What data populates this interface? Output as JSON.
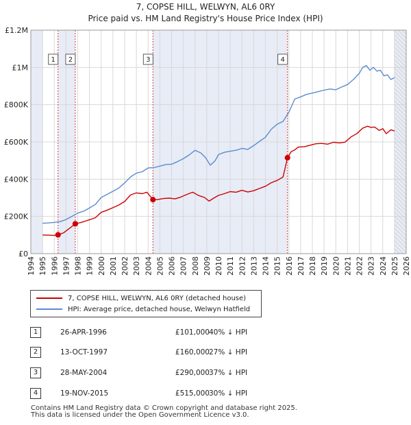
{
  "title_line1": "7, COPSE HILL, WELWYN, AL6 0RY",
  "title_line2": "Price paid vs. HM Land Registry's House Price Index (HPI)",
  "chart_data": {
    "type": "line",
    "title": "7, COPSE HILL, WELWYN, AL6 0RY",
    "subtitle": "Price paid vs. HM Land Registry's House Price Index (HPI)",
    "xlabel": "",
    "ylabel": "",
    "xlim": [
      1994,
      2026
    ],
    "ylim": [
      0,
      1200000
    ],
    "x_ticks": [
      "1994",
      "1995",
      "1996",
      "1997",
      "1998",
      "1999",
      "2000",
      "2001",
      "2002",
      "2003",
      "2004",
      "2005",
      "2006",
      "2007",
      "2008",
      "2009",
      "2010",
      "2011",
      "2012",
      "2013",
      "2014",
      "2015",
      "2016",
      "2017",
      "2018",
      "2019",
      "2020",
      "2021",
      "2022",
      "2023",
      "2024",
      "2025",
      "2026"
    ],
    "y_ticks": [
      {
        "value": 0,
        "label": "£0"
      },
      {
        "value": 200000,
        "label": "£200K"
      },
      {
        "value": 400000,
        "label": "£400K"
      },
      {
        "value": 600000,
        "label": "£600K"
      },
      {
        "value": 800000,
        "label": "£800K"
      },
      {
        "value": 1000000,
        "label": "£1M"
      },
      {
        "value": 1200000,
        "label": "£1.2M"
      }
    ],
    "grid": true,
    "series": [
      {
        "name": "7, COPSE HILL, WELWYN, AL6 0RY (detached house)",
        "color": "#cc0000",
        "x": [
          1995.0,
          1995.5,
          1996.0,
          1996.32,
          1996.8,
          1997.3,
          1997.79,
          1998.3,
          1999.0,
          1999.5,
          2000.0,
          2000.5,
          2001.0,
          2001.5,
          2002.0,
          2002.5,
          2003.0,
          2003.5,
          2003.9,
          2004.41,
          2004.8,
          2005.3,
          2005.8,
          2006.3,
          2006.8,
          2007.3,
          2007.8,
          2008.3,
          2008.8,
          2009.2,
          2009.6,
          2010.0,
          2010.5,
          2011.0,
          2011.5,
          2012.0,
          2012.5,
          2013.0,
          2013.5,
          2014.0,
          2014.5,
          2015.0,
          2015.5,
          2015.88,
          2016.2,
          2016.5,
          2016.8,
          2017.3,
          2017.8,
          2018.3,
          2018.8,
          2019.3,
          2019.8,
          2020.3,
          2020.8,
          2021.3,
          2021.8,
          2022.3,
          2022.7,
          2023.0,
          2023.3,
          2023.7,
          2024.0,
          2024.3,
          2024.7,
          2025.0
        ],
        "values": [
          100000,
          99000,
          98000,
          101000,
          112000,
          136000,
          160000,
          168000,
          182000,
          193000,
          222000,
          233000,
          247000,
          261000,
          280000,
          315000,
          326000,
          322000,
          330000,
          290000,
          290000,
          296000,
          298000,
          294000,
          304000,
          318000,
          330000,
          312000,
          302000,
          282000,
          298000,
          313000,
          322000,
          333000,
          330000,
          340000,
          331000,
          338000,
          350000,
          362000,
          381000,
          393000,
          412000,
          515000,
          548000,
          557000,
          572000,
          574000,
          582000,
          590000,
          592000,
          588000,
          598000,
          594000,
          599000,
          627000,
          645000,
          674000,
          684000,
          678000,
          680000,
          662000,
          671000,
          644000,
          665000,
          658000
        ]
      },
      {
        "name": "HPI: Average price, detached house, Welwyn Hatfield",
        "color": "#5b8bd0",
        "x": [
          1995.0,
          1995.5,
          1996.0,
          1996.5,
          1997.0,
          1997.5,
          1998.0,
          1998.5,
          1999.0,
          1999.5,
          2000.0,
          2000.5,
          2001.0,
          2001.5,
          2002.0,
          2002.5,
          2003.0,
          2003.5,
          2004.0,
          2004.5,
          2005.0,
          2005.5,
          2006.0,
          2006.5,
          2007.0,
          2007.5,
          2008.0,
          2008.5,
          2008.9,
          2009.3,
          2009.7,
          2010.0,
          2010.5,
          2011.0,
          2011.5,
          2012.0,
          2012.5,
          2013.0,
          2013.5,
          2014.0,
          2014.5,
          2015.0,
          2015.5,
          2016.0,
          2016.5,
          2017.0,
          2017.5,
          2018.0,
          2018.5,
          2019.0,
          2019.5,
          2020.0,
          2020.5,
          2021.0,
          2021.5,
          2022.0,
          2022.3,
          2022.6,
          2022.9,
          2023.2,
          2023.5,
          2023.8,
          2024.1,
          2024.4,
          2024.7,
          2025.0
        ],
        "values": [
          163000,
          165000,
          168000,
          172000,
          183000,
          200000,
          218000,
          228000,
          245000,
          264000,
          302000,
          318000,
          335000,
          352000,
          380000,
          412000,
          432000,
          440000,
          460000,
          462000,
          470000,
          478000,
          480000,
          494000,
          510000,
          530000,
          555000,
          540000,
          515000,
          475000,
          498000,
          532000,
          544000,
          550000,
          555000,
          565000,
          560000,
          580000,
          603000,
          625000,
          668000,
          695000,
          710000,
          760000,
          830000,
          842000,
          855000,
          862000,
          870000,
          878000,
          884000,
          880000,
          895000,
          908000,
          935000,
          968000,
          1000000,
          1010000,
          985000,
          1000000,
          980000,
          985000,
          955000,
          960000,
          935000,
          945000
        ]
      }
    ],
    "sale_markers": [
      {
        "label": "1",
        "x": 1996.32,
        "y": 101000
      },
      {
        "label": "2",
        "x": 1997.79,
        "y": 160000
      },
      {
        "label": "3",
        "x": 2004.41,
        "y": 290000
      },
      {
        "label": "4",
        "x": 2015.88,
        "y": 515000
      }
    ],
    "shaded_spans": [
      [
        1994,
        1995
      ],
      [
        1996.32,
        1997.79
      ],
      [
        2004.41,
        2015.88
      ],
      [
        2025.0,
        2026
      ]
    ]
  },
  "legend": [
    {
      "label": "7, COPSE HILL, WELWYN, AL6 0RY (detached house)",
      "color": "#cc0000"
    },
    {
      "label": "HPI: Average price, detached house, Welwyn Hatfield",
      "color": "#5b8bd0"
    }
  ],
  "sales": [
    {
      "num": "1",
      "date": "26-APR-1996",
      "price": "£101,000",
      "hpi": "40% ↓ HPI"
    },
    {
      "num": "2",
      "date": "13-OCT-1997",
      "price": "£160,000",
      "hpi": "27% ↓ HPI"
    },
    {
      "num": "3",
      "date": "28-MAY-2004",
      "price": "£290,000",
      "hpi": "37% ↓ HPI"
    },
    {
      "num": "4",
      "date": "19-NOV-2015",
      "price": "£515,000",
      "hpi": "30% ↓ HPI"
    }
  ],
  "footer_line1": "Contains HM Land Registry data © Crown copyright and database right 2025.",
  "footer_line2": "This data is licensed under the Open Government Licence v3.0."
}
